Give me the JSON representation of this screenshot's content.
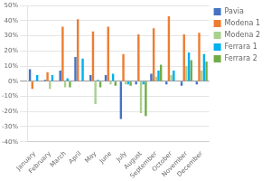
{
  "chart_data": {
    "type": "bar",
    "categories": [
      "January",
      "February",
      "March",
      "April",
      "May",
      "June",
      "July",
      "August",
      "September",
      "October",
      "November",
      "December"
    ],
    "series": [
      {
        "name": "Pavia",
        "color": "#4472c4",
        "values": [
          8,
          1,
          7,
          16,
          4,
          4,
          -25,
          -2,
          5,
          -2,
          -3,
          -2
        ]
      },
      {
        "name": "Modena 1",
        "color": "#ed7d31",
        "values": [
          -5,
          6,
          36,
          41,
          33,
          36,
          18,
          31,
          35,
          43,
          31,
          32
        ]
      },
      {
        "name": "Modena 2",
        "color": "#a9d18e",
        "values": [
          0,
          -5,
          -4,
          0,
          -15,
          -2,
          -2,
          -21,
          3,
          4,
          10,
          7
        ]
      },
      {
        "name": "Ferrara 1",
        "color": "#00b0f0",
        "values": [
          4,
          4,
          2,
          15,
          1,
          5,
          -2,
          -2,
          7,
          7,
          19,
          18
        ]
      },
      {
        "name": "Ferrara 2",
        "color": "#70ad47",
        "values": [
          0,
          0,
          -4,
          0,
          -4,
          -3,
          -3,
          -23,
          11,
          0,
          14,
          13
        ]
      }
    ],
    "ylim": [
      -40,
      50
    ],
    "yticks": [
      {
        "value": -40,
        "label": "-40%"
      },
      {
        "value": -30,
        "label": "-30%"
      },
      {
        "value": -20,
        "label": "-20%"
      },
      {
        "value": -10,
        "label": "-10%"
      },
      {
        "value": 0,
        "label": "0%"
      },
      {
        "value": 10,
        "label": "10%"
      },
      {
        "value": 20,
        "label": "20%"
      },
      {
        "value": 30,
        "label": "30%"
      },
      {
        "value": 40,
        "label": "40%"
      },
      {
        "value": 50,
        "label": "50%"
      }
    ],
    "grid": "y",
    "legend": "right"
  }
}
